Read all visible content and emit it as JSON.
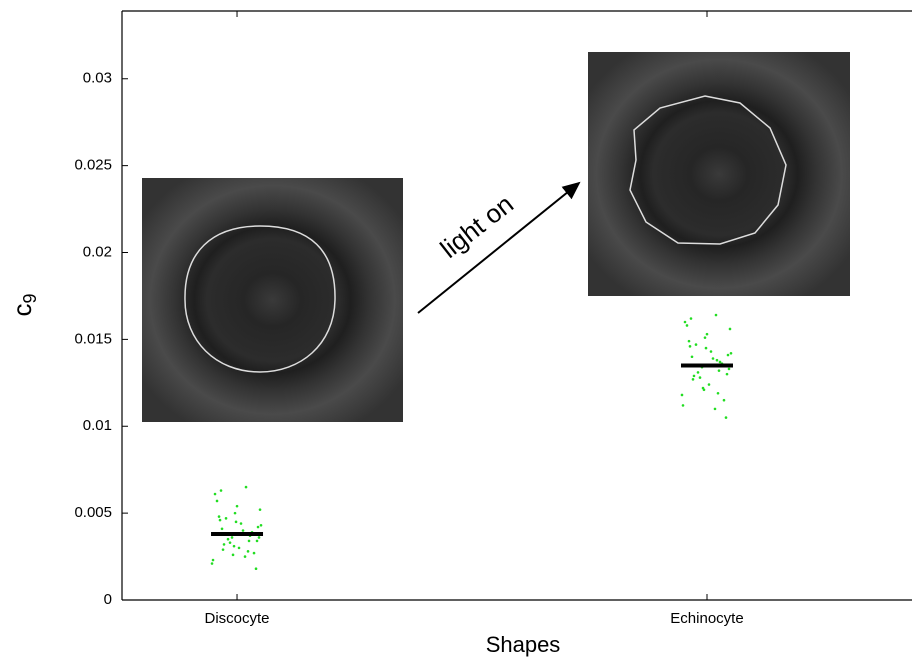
{
  "chart_data": {
    "type": "strip",
    "xlabel": "Shapes",
    "ylabel": "c",
    "ylabel_sub": "9",
    "annotation": "light on",
    "ylim": [
      0,
      0.0339
    ],
    "yticks": [
      0,
      0.005,
      0.01,
      0.015,
      0.02,
      0.025,
      0.03
    ],
    "point_color": "#22dd22",
    "mean_color": "#000000",
    "groups": [
      {
        "category": "Discocyte",
        "mean": 0.0038,
        "points": [
          0.0021,
          0.0034,
          0.0045,
          0.0029,
          0.0052,
          0.0038,
          0.0031,
          0.0063,
          0.0042,
          0.0025,
          0.0036,
          0.0048,
          0.0018,
          0.004,
          0.0033,
          0.0057,
          0.0027,
          0.0044,
          0.0035,
          0.0061,
          0.0039,
          0.003,
          0.0047,
          0.0023,
          0.0037,
          0.0054,
          0.0032,
          0.0043,
          0.0028,
          0.005,
          0.0041,
          0.0036,
          0.0065,
          0.0026,
          0.0046,
          0.0034
        ]
      },
      {
        "category": "Echinocyte",
        "mean": 0.0135,
        "points": [
          0.0118,
          0.0132,
          0.0145,
          0.0127,
          0.0156,
          0.0138,
          0.0121,
          0.0162,
          0.0141,
          0.011,
          0.0134,
          0.0149,
          0.0105,
          0.0139,
          0.0128,
          0.0158,
          0.0115,
          0.0143,
          0.0131,
          0.016,
          0.0136,
          0.0124,
          0.0147,
          0.0112,
          0.0137,
          0.0153,
          0.0129,
          0.0142,
          0.0119,
          0.0151,
          0.014,
          0.0133,
          0.0164,
          0.0122,
          0.0146,
          0.013
        ]
      }
    ]
  }
}
